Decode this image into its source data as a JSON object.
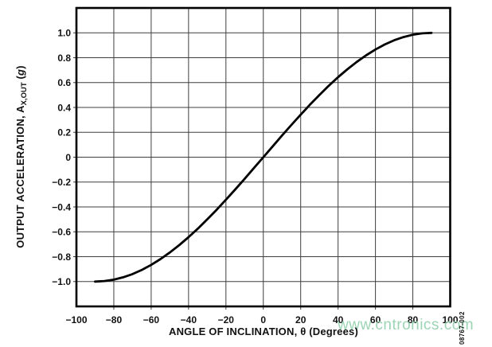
{
  "figure": {
    "watermark": "www.cntronics.com",
    "code": "08767-002",
    "background_color": "#ffffff"
  },
  "chart_data": {
    "type": "line",
    "title": "",
    "xlabel": "ANGLE OF INCLINATION, θ (Degrees)",
    "ylabel": {
      "prefix": "OUTPUT ACCELERATION, A",
      "subscript": "X,OUT",
      "unit_open": " (",
      "unit_symbol": "g",
      "unit_close": ")"
    },
    "xlim": [
      -100,
      100
    ],
    "ylim": [
      -1.2,
      1.2
    ],
    "x_ticks": {
      "values": [
        -100,
        -80,
        -60,
        -40,
        -20,
        0,
        20,
        40,
        60,
        80,
        100
      ],
      "labels": [
        "−100",
        "−80",
        "−60",
        "−40",
        "−20",
        "0",
        "20",
        "40",
        "60",
        "80",
        "100"
      ]
    },
    "y_ticks": {
      "values": [
        1.0,
        0.8,
        0.6,
        0.4,
        0.2,
        0,
        -0.2,
        -0.4,
        -0.6,
        -0.8,
        -1.0
      ],
      "labels": [
        "1.0",
        "0.8",
        "0.6",
        "0.4",
        "0.2",
        "0",
        "−0.2",
        "−0.4",
        "−0.6",
        "−0.8",
        "−1.0"
      ]
    },
    "grid": "major",
    "legend": "none",
    "line_color": "#000000",
    "grid_color": "#3f3f3f",
    "border_color": "#000000",
    "series": [
      {
        "x": [
          -90,
          -85,
          -80,
          -75,
          -70,
          -65,
          -60,
          -55,
          -50,
          -45,
          -40,
          -35,
          -30,
          -25,
          -20,
          -15,
          -10,
          -5,
          0,
          5,
          10,
          15,
          20,
          25,
          30,
          35,
          40,
          45,
          50,
          55,
          60,
          65,
          70,
          75,
          80,
          85,
          90
        ],
        "y": [
          -1.0,
          -0.996,
          -0.985,
          -0.966,
          -0.94,
          -0.906,
          -0.866,
          -0.819,
          -0.766,
          -0.707,
          -0.643,
          -0.574,
          -0.5,
          -0.423,
          -0.342,
          -0.259,
          -0.174,
          -0.087,
          0,
          0.087,
          0.174,
          0.259,
          0.342,
          0.423,
          0.5,
          0.574,
          0.643,
          0.707,
          0.766,
          0.819,
          0.866,
          0.906,
          0.94,
          0.966,
          0.985,
          0.996,
          1.0
        ]
      }
    ]
  }
}
